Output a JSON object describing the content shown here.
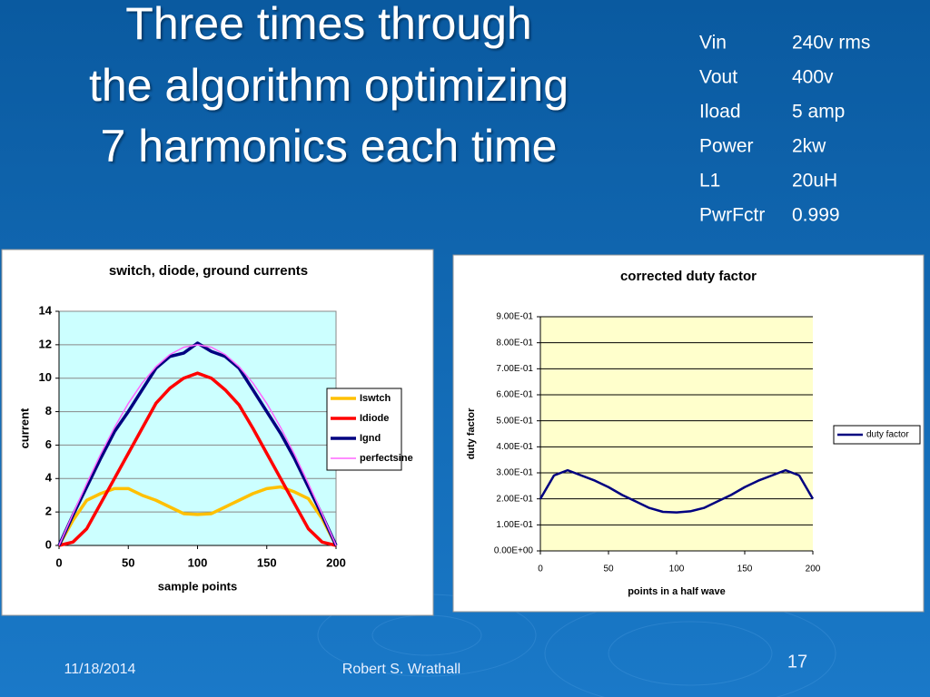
{
  "slide": {
    "title": [
      "Three times through",
      "the algorithm optimizing",
      "7 harmonics each time"
    ],
    "parameters": [
      [
        "Vin",
        "240v rms"
      ],
      [
        "Vout",
        "400v"
      ],
      [
        "Iload",
        "5 amp"
      ],
      [
        "Power",
        "2kw"
      ],
      [
        "L1",
        "20uH"
      ],
      [
        "PwrFctr",
        "0.999"
      ]
    ],
    "footer": {
      "date": "11/18/2014",
      "author": "Robert S. Wrathall",
      "page": "17"
    }
  },
  "chart_data": [
    {
      "type": "line",
      "title": "switch, diode, ground currents",
      "x_label": "sample points",
      "y_label": "current",
      "x": [
        0,
        10,
        20,
        30,
        40,
        50,
        60,
        70,
        80,
        90,
        100,
        110,
        120,
        130,
        140,
        150,
        160,
        170,
        180,
        190,
        200
      ],
      "xlim": [
        0,
        200
      ],
      "xticks": [
        0,
        50,
        100,
        150,
        200
      ],
      "ylim": [
        0,
        14
      ],
      "yticks": [
        0,
        2,
        4,
        6,
        8,
        10,
        12,
        14
      ],
      "grid": true,
      "legend": "right",
      "series": [
        {
          "name": "Iswtch",
          "color": "#ffc000",
          "values": [
            0,
            1.5,
            2.7,
            3.1,
            3.4,
            3.4,
            3.0,
            2.7,
            2.3,
            1.9,
            1.85,
            1.9,
            2.3,
            2.7,
            3.1,
            3.4,
            3.5,
            3.2,
            2.8,
            1.6,
            0
          ]
        },
        {
          "name": "Idiode",
          "color": "#ff0000",
          "values": [
            0,
            0.2,
            1.0,
            2.5,
            4.0,
            5.5,
            7.0,
            8.5,
            9.4,
            10.0,
            10.3,
            10.0,
            9.3,
            8.4,
            7.0,
            5.5,
            4.0,
            2.5,
            1.0,
            0.2,
            0
          ]
        },
        {
          "name": "Ignd",
          "color": "#000080",
          "values": [
            0,
            1.8,
            3.5,
            5.2,
            6.8,
            8.0,
            9.3,
            10.6,
            11.3,
            11.5,
            12.1,
            11.6,
            11.3,
            10.6,
            9.3,
            8.0,
            6.7,
            5.2,
            3.5,
            1.8,
            0
          ]
        },
        {
          "name": "perfectsine",
          "color": "#ff66ff",
          "values": [
            0,
            1.88,
            3.71,
            5.45,
            7.05,
            8.49,
            9.71,
            10.69,
            11.41,
            11.85,
            12.0,
            11.85,
            11.41,
            10.69,
            9.71,
            8.49,
            7.05,
            5.45,
            3.71,
            1.88,
            0
          ]
        }
      ]
    },
    {
      "type": "line",
      "title": "corrected duty factor",
      "x_label": "points in a half wave",
      "y_label": "duty factor",
      "x": [
        0,
        10,
        20,
        30,
        40,
        50,
        60,
        70,
        80,
        90,
        100,
        110,
        120,
        130,
        140,
        150,
        160,
        170,
        180,
        190,
        200
      ],
      "xlim": [
        0,
        200
      ],
      "xticks": [
        0,
        50,
        100,
        150,
        200
      ],
      "ylim": [
        0,
        0.9
      ],
      "yticks": [
        {
          "value": 0,
          "label": "0.00E+00"
        },
        {
          "value": 0.1,
          "label": "1.00E-01"
        },
        {
          "value": 0.2,
          "label": "2.00E-01"
        },
        {
          "value": 0.3,
          "label": "3.00E-01"
        },
        {
          "value": 0.4,
          "label": "4.00E-01"
        },
        {
          "value": 0.5,
          "label": "5.00E-01"
        },
        {
          "value": 0.6,
          "label": "6.00E-01"
        },
        {
          "value": 0.7,
          "label": "7.00E-01"
        },
        {
          "value": 0.8,
          "label": "8.00E-01"
        },
        {
          "value": 0.9,
          "label": "9.00E-01"
        }
      ],
      "grid": true,
      "legend": "right",
      "series": [
        {
          "name": "duty factor",
          "color": "#000080",
          "values": [
            0.2,
            0.29,
            0.31,
            0.29,
            0.27,
            0.245,
            0.215,
            0.19,
            0.165,
            0.15,
            0.148,
            0.152,
            0.165,
            0.19,
            0.215,
            0.245,
            0.27,
            0.29,
            0.31,
            0.29,
            0.2
          ]
        }
      ]
    }
  ]
}
